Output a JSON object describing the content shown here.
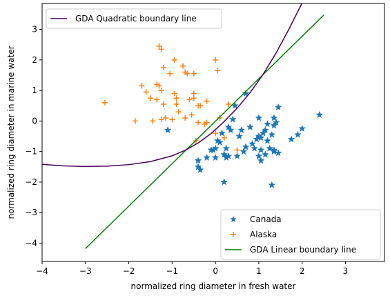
{
  "chart_data": {
    "type": "scatter",
    "xlabel": "normalized ring diameter in fresh water",
    "ylabel": "normalized ring diameter in marine water",
    "xlim": [
      -4,
      3.9
    ],
    "ylim": [
      -4.6,
      3.85
    ],
    "xticks": [
      -4,
      -3,
      -2,
      -1,
      0,
      1,
      2,
      3
    ],
    "yticks": [
      -4,
      -3,
      -2,
      -1,
      0,
      1,
      2,
      3
    ],
    "grid": false,
    "legend_placement": {
      "lines": "upper-left",
      "points": "lower-right"
    },
    "series": [
      {
        "name": "Canada",
        "kind": "scatter",
        "marker": "star",
        "color": "#1f77b4",
        "points": [
          [
            -1.1,
            -0.3
          ],
          [
            -0.4,
            -1.3
          ],
          [
            -0.4,
            -1.5
          ],
          [
            -0.35,
            -1.6
          ],
          [
            -0.2,
            -1.2
          ],
          [
            -0.1,
            -0.95
          ],
          [
            -0.05,
            -0.95
          ],
          [
            0,
            -1.2
          ],
          [
            0,
            -0.9
          ],
          [
            0.05,
            -0.65
          ],
          [
            0.1,
            -0.7
          ],
          [
            0.15,
            -0.4
          ],
          [
            0.2,
            -2.0
          ],
          [
            0.2,
            -1.1
          ],
          [
            0.25,
            -1.2
          ],
          [
            0.25,
            -0.9
          ],
          [
            0.3,
            -0.2
          ],
          [
            0.3,
            -1.15
          ],
          [
            0.35,
            -0.3
          ],
          [
            0.4,
            0.05
          ],
          [
            0.45,
            0.5
          ],
          [
            0.5,
            -1.15
          ],
          [
            0.55,
            -0.5
          ],
          [
            0.6,
            -0.3
          ],
          [
            0.65,
            -1.0
          ],
          [
            0.7,
            0.9
          ],
          [
            0.7,
            -0.85
          ],
          [
            0.8,
            -0.2
          ],
          [
            0.85,
            -0.75
          ],
          [
            0.9,
            -0.9
          ],
          [
            0.95,
            -0.6
          ],
          [
            1.0,
            -0.5
          ],
          [
            1.0,
            0.1
          ],
          [
            1.0,
            -1.15
          ],
          [
            1.05,
            -1.3
          ],
          [
            1.05,
            -0.55
          ],
          [
            1.05,
            -0.95
          ],
          [
            1.1,
            -0.4
          ],
          [
            1.15,
            -0.3
          ],
          [
            1.15,
            -1.1
          ],
          [
            1.2,
            -0.1
          ],
          [
            1.2,
            -0.65
          ],
          [
            1.25,
            -0.9
          ],
          [
            1.3,
            -0.45
          ],
          [
            1.3,
            -2.1
          ],
          [
            1.35,
            -0.95
          ],
          [
            1.35,
            0.1
          ],
          [
            1.35,
            -0.15
          ],
          [
            1.35,
            -1.0
          ],
          [
            1.4,
            -0.05
          ],
          [
            1.45,
            -1.05
          ],
          [
            1.45,
            0.45
          ],
          [
            1.75,
            -0.6
          ],
          [
            1.9,
            -0.45
          ],
          [
            2.0,
            -0.25
          ],
          [
            2.4,
            0.2
          ]
        ]
      },
      {
        "name": "Alaska",
        "kind": "scatter",
        "marker": "plus",
        "color": "#ff7f0e",
        "points": [
          [
            -2.55,
            0.6
          ],
          [
            -1.85,
            0.0
          ],
          [
            -1.7,
            1.15
          ],
          [
            -1.6,
            0.95
          ],
          [
            -1.5,
            0.75
          ],
          [
            -1.45,
            0.0
          ],
          [
            -1.35,
            0.7
          ],
          [
            -1.35,
            1.2
          ],
          [
            -1.3,
            2.45
          ],
          [
            -1.3,
            1.15
          ],
          [
            -1.25,
            2.35
          ],
          [
            -1.25,
            1.0
          ],
          [
            -1.25,
            0.05
          ],
          [
            -1.2,
            1.75
          ],
          [
            -1.2,
            0.55
          ],
          [
            -1.15,
            0.1
          ],
          [
            -1.05,
            1.55
          ],
          [
            -1.0,
            0.05
          ],
          [
            -0.95,
            2.0
          ],
          [
            -0.95,
            0.9
          ],
          [
            -0.9,
            0.75
          ],
          [
            -0.9,
            0.55
          ],
          [
            -0.85,
            0.3
          ],
          [
            -0.75,
            1.8
          ],
          [
            -0.7,
            1.6
          ],
          [
            -0.7,
            0.1
          ],
          [
            -0.65,
            1.55
          ],
          [
            -0.6,
            0.7
          ],
          [
            -0.55,
            0.2
          ],
          [
            -0.5,
            1.55
          ],
          [
            -0.5,
            0.75
          ],
          [
            -0.5,
            0.9
          ],
          [
            -0.45,
            -0.65
          ],
          [
            -0.4,
            0.5
          ],
          [
            -0.4,
            -0.05
          ],
          [
            -0.35,
            0.5
          ],
          [
            -0.25,
            -0.1
          ],
          [
            -0.2,
            -0.05
          ],
          [
            -0.2,
            0.65
          ],
          [
            0.0,
            2.0
          ],
          [
            0.05,
            1.65
          ],
          [
            0.0,
            -0.4
          ],
          [
            0.1,
            0.1
          ],
          [
            0.2,
            -0.55
          ],
          [
            0.3,
            0.55
          ],
          [
            0.5,
            -0.95
          ]
        ]
      },
      {
        "name": "GDA Linear boundary line",
        "kind": "line",
        "color": "#008000",
        "points": [
          [
            -3,
            -4.18
          ],
          [
            2.5,
            3.47
          ]
        ]
      },
      {
        "name": "GDA Quadratic boundary line",
        "kind": "line",
        "color": "#440154",
        "points": [
          [
            -4,
            -1.42
          ],
          [
            -3.5,
            -1.47
          ],
          [
            -3,
            -1.49
          ],
          [
            -2.5,
            -1.48
          ],
          [
            -2,
            -1.43
          ],
          [
            -1.5,
            -1.33
          ],
          [
            -1.0,
            -1.14
          ],
          [
            -0.7,
            -0.96
          ],
          [
            -0.4,
            -0.72
          ],
          [
            -0.1,
            -0.41
          ],
          [
            0.2,
            -0.02
          ],
          [
            0.5,
            0.42
          ],
          [
            0.8,
            0.93
          ],
          [
            1.1,
            1.53
          ],
          [
            1.4,
            2.23
          ],
          [
            1.7,
            3.02
          ],
          [
            2.0,
            3.87
          ]
        ]
      }
    ]
  }
}
